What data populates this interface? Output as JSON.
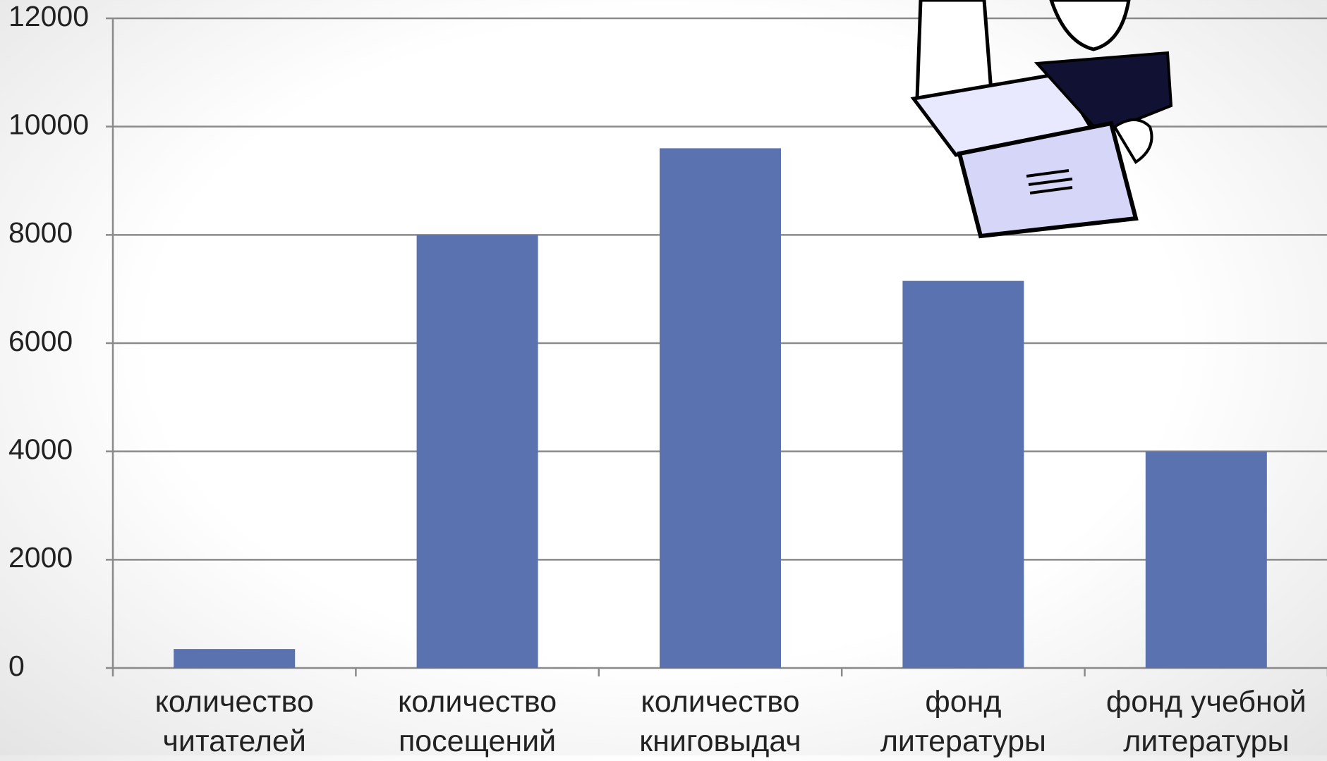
{
  "chart_data": {
    "type": "bar",
    "categories": [
      "количество читателей",
      "количество посещений",
      "количество книговыдач",
      "фонд литературы",
      "фонд учебной литературы"
    ],
    "values": [
      350,
      8000,
      9600,
      7150,
      4000
    ],
    "color": "#5b72b0",
    "ylim": [
      0,
      12000
    ],
    "yticks": [
      0,
      2000,
      4000,
      6000,
      8000,
      10000,
      12000
    ],
    "grid": true
  }
}
